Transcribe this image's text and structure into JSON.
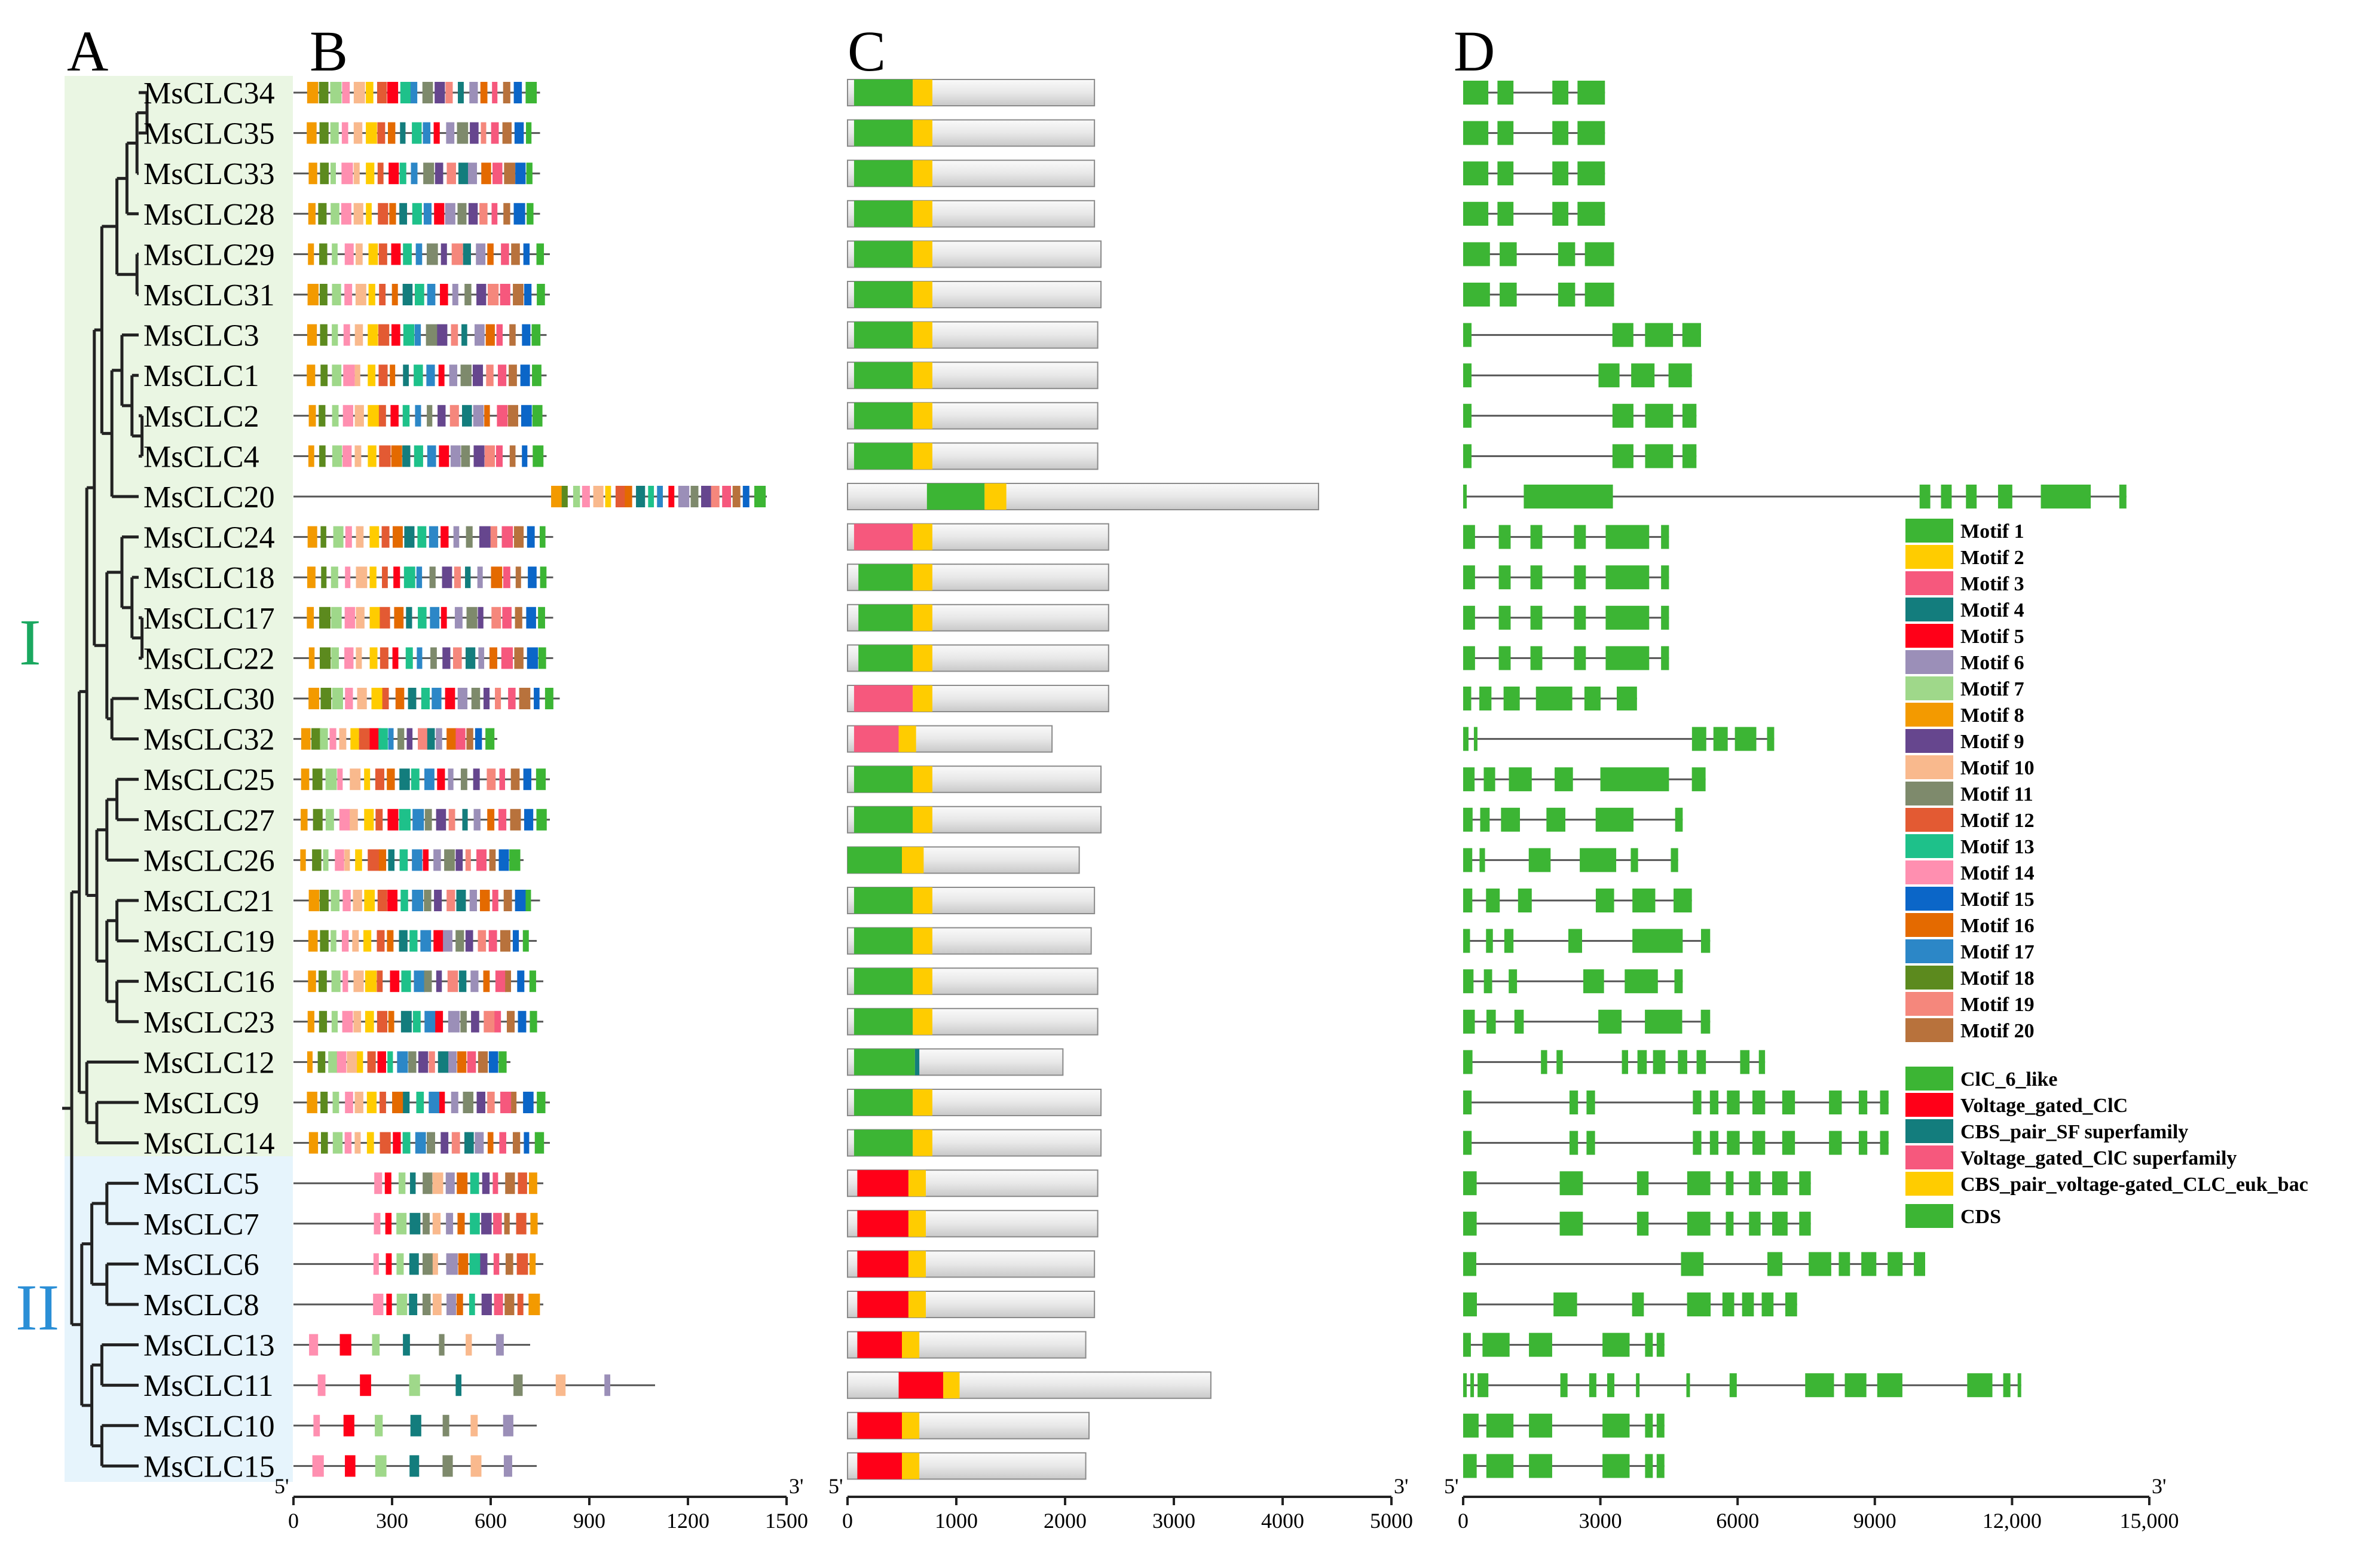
{
  "panels": {
    "A": "A",
    "B": "B",
    "C": "C",
    "D": "D"
  },
  "clade_labels": [
    {
      "label": "I",
      "color": "#1aa860"
    },
    {
      "label": "II",
      "color": "#2b8fd6"
    }
  ],
  "genes": [
    "MsCLC34",
    "MsCLC35",
    "MsCLC33",
    "MsCLC28",
    "MsCLC29",
    "MsCLC31",
    "MsCLC3",
    "MsCLC1",
    "MsCLC2",
    "MsCLC4",
    "MsCLC20",
    "MsCLC24",
    "MsCLC18",
    "MsCLC17",
    "MsCLC22",
    "MsCLC30",
    "MsCLC32",
    "MsCLC25",
    "MsCLC27",
    "MsCLC26",
    "MsCLC21",
    "MsCLC19",
    "MsCLC16",
    "MsCLC23",
    "MsCLC12",
    "MsCLC9",
    "MsCLC14",
    "MsCLC5",
    "MsCLC7",
    "MsCLC6",
    "MsCLC8",
    "MsCLC13",
    "MsCLC11",
    "MsCLC10",
    "MsCLC15"
  ],
  "gene_lengths_B": [
    750,
    750,
    750,
    750,
    780,
    780,
    770,
    770,
    770,
    770,
    1440,
    790,
    790,
    790,
    790,
    810,
    620,
    780,
    780,
    700,
    750,
    740,
    760,
    760,
    660,
    780,
    780,
    760,
    760,
    760,
    760,
    720,
    1100,
    740,
    740
  ],
  "gene_lengths_C": [
    2270,
    2270,
    2270,
    2270,
    2330,
    2330,
    2300,
    2300,
    2300,
    2300,
    4330,
    2400,
    2400,
    2400,
    2400,
    2400,
    1880,
    2330,
    2330,
    2130,
    2270,
    2240,
    2300,
    2300,
    1980,
    2330,
    2330,
    2300,
    2300,
    2270,
    2270,
    2190,
    3340,
    2220,
    2190
  ],
  "gene_lengths_D": [
    3100,
    3100,
    3100,
    3100,
    3300,
    3300,
    5200,
    5000,
    5100,
    5100,
    14500,
    4500,
    4500,
    4500,
    4500,
    3800,
    6800,
    5300,
    4800,
    4700,
    5000,
    5400,
    4800,
    5400,
    6600,
    9300,
    9300,
    7600,
    7600,
    10100,
    7300,
    4400,
    12200,
    4400,
    4400
  ],
  "motif_palette": [
    "#3cb534",
    "#ffcc00",
    "#f6587d",
    "#137d7d",
    "#ff0018",
    "#9b8fb8",
    "#9fd88a",
    "#f39a00",
    "#66468e",
    "#f9b98d",
    "#7e8a6c",
    "#e35a33",
    "#1ec18a",
    "#ff8fb0",
    "#0b66c8",
    "#e46a00",
    "#2c87c7",
    "#5c8a1e",
    "#f5877c",
    "#b8723c"
  ],
  "axes": {
    "B": {
      "start": "5'",
      "end": "3'",
      "ticks": [
        0,
        300,
        600,
        900,
        1200,
        1500
      ],
      "tick_labels": [
        "0",
        "300",
        "600",
        "900",
        "1200",
        "1500"
      ]
    },
    "C": {
      "start": "5'",
      "end": "3'",
      "ticks": [
        0,
        1000,
        2000,
        3000,
        4000,
        5000
      ],
      "tick_labels": [
        "0",
        "1000",
        "2000",
        "3000",
        "4000",
        "5000"
      ]
    },
    "D": {
      "start": "5'",
      "end": "3'",
      "ticks": [
        0,
        3000,
        6000,
        9000,
        12000,
        15000
      ],
      "tick_labels": [
        "0",
        "3000",
        "6000",
        "9000",
        "12,000",
        "15,000"
      ]
    }
  },
  "legend": {
    "motifs": [
      {
        "label": "Motif 1",
        "color": "#3cb534"
      },
      {
        "label": "Motif 2",
        "color": "#ffcc00"
      },
      {
        "label": "Motif 3",
        "color": "#f6587d"
      },
      {
        "label": "Motif 4",
        "color": "#137d7d"
      },
      {
        "label": "Motif 5",
        "color": "#ff0018"
      },
      {
        "label": "Motif 6",
        "color": "#9b8fb8"
      },
      {
        "label": "Motif 7",
        "color": "#9fd88a"
      },
      {
        "label": "Motif 8",
        "color": "#f39a00"
      },
      {
        "label": "Motif 9",
        "color": "#66468e"
      },
      {
        "label": "Motif 10",
        "color": "#f9b98d"
      },
      {
        "label": "Motif 11",
        "color": "#7e8a6c"
      },
      {
        "label": "Motif 12",
        "color": "#e35a33"
      },
      {
        "label": "Motif 13",
        "color": "#1ec18a"
      },
      {
        "label": "Motif 14",
        "color": "#ff8fb0"
      },
      {
        "label": "Motif 15",
        "color": "#0b66c8"
      },
      {
        "label": "Motif 16",
        "color": "#e46a00"
      },
      {
        "label": "Motif 17",
        "color": "#2c87c7"
      },
      {
        "label": "Motif 18",
        "color": "#5c8a1e"
      },
      {
        "label": "Motif 19",
        "color": "#f5877c"
      },
      {
        "label": "Motif 20",
        "color": "#b8723c"
      }
    ],
    "domains": [
      {
        "label": "ClC_6_like",
        "color": "#3cb534"
      },
      {
        "label": "Voltage_gated_ClC",
        "color": "#ff0018"
      },
      {
        "label": "CBS_pair_SF superfamily",
        "color": "#137d7d"
      },
      {
        "label": "Voltage_gated_ClC superfamily",
        "color": "#f6587d"
      },
      {
        "label": "CBS_pair_voltage-gated_CLC_euk_bac",
        "color": "#ffcc00"
      }
    ],
    "cds": {
      "label": "CDS",
      "color": "#3cb534"
    }
  },
  "colors": {
    "clade1_bg": "#eaf6e3",
    "clade2_bg": "#e6f4fc",
    "line": "#555555",
    "box_fill": "#e4e4e4"
  }
}
